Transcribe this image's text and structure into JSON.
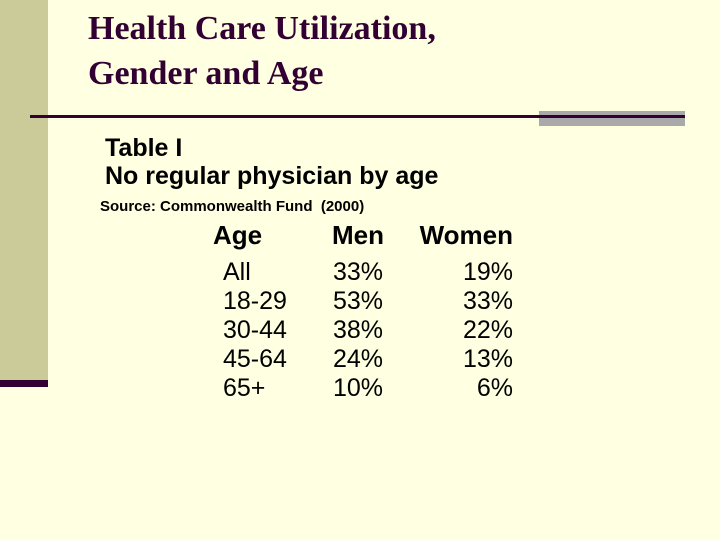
{
  "slide": {
    "title": {
      "lines": [
        "Health Care Utilization,",
        "Gender and Age"
      ]
    },
    "body": {
      "heading_line1": "Table I",
      "heading_line2": "No regular physician by age",
      "source": "Source: Commonwealth Fund  (2000)"
    },
    "table": {
      "columns": [
        "Age",
        "Men",
        "Women"
      ],
      "rows": [
        [
          "All",
          "33%",
          "19%"
        ],
        [
          "18-29",
          "53%",
          "33%"
        ],
        [
          "30-44",
          "38%",
          "22%"
        ],
        [
          "45-64",
          "24%",
          "13%"
        ],
        [
          "65+",
          "10%",
          "6%"
        ]
      ]
    },
    "colors": {
      "background": "#FFFFE1",
      "sidebar_band": "#CBCB99",
      "accent_dark_purple": "#330033",
      "accent_gray": "#A9A9A9",
      "body_text": "#000000"
    }
  },
  "chart_data": {
    "type": "table",
    "title": "No regular physician by age",
    "subtitle": "Table I",
    "source": "Commonwealth Fund (2000)",
    "columns": [
      "Age",
      "Men",
      "Women"
    ],
    "categories": [
      "All",
      "18-29",
      "30-44",
      "45-64",
      "65+"
    ],
    "series": [
      {
        "name": "Men",
        "values": [
          33,
          53,
          38,
          24,
          10
        ],
        "unit": "%"
      },
      {
        "name": "Women",
        "values": [
          19,
          33,
          22,
          13,
          6
        ],
        "unit": "%"
      }
    ]
  }
}
